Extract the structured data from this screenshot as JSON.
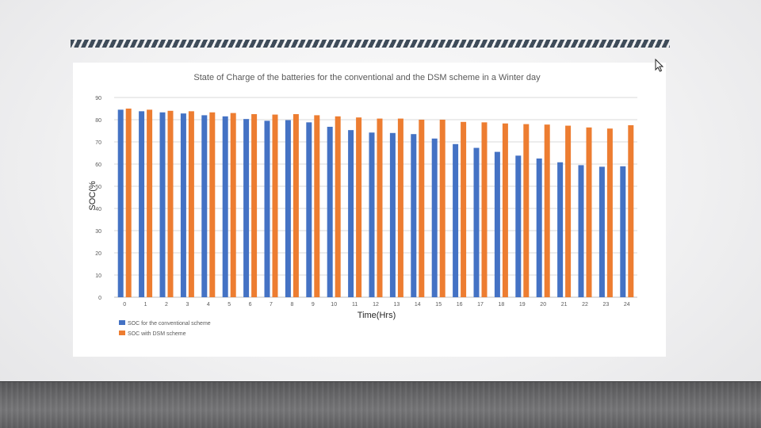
{
  "chart_data": {
    "type": "bar",
    "title": "State of Charge of the batteries for the conventional and the DSM scheme in a Winter day",
    "xlabel": "Time(Hrs)",
    "ylabel": "SOC(%",
    "ylim": [
      0,
      90
    ],
    "yticks": [
      0,
      10,
      20,
      30,
      40,
      50,
      60,
      70,
      80,
      90
    ],
    "grid": true,
    "legend": "bottom-left",
    "categories": [
      "0",
      "1",
      "2",
      "3",
      "4",
      "5",
      "6",
      "7",
      "8",
      "9",
      "10",
      "11",
      "12",
      "13",
      "14",
      "15",
      "16",
      "17",
      "18",
      "19",
      "20",
      "21",
      "22",
      "23",
      "24"
    ],
    "series": [
      {
        "name": "SOC for the conventional scheme",
        "color": "#4472c4",
        "values": [
          84.5,
          83.8,
          83.3,
          82.8,
          82.0,
          81.5,
          80.3,
          79.5,
          79.8,
          78.8,
          76.8,
          75.3,
          74.2,
          74.0,
          73.5,
          71.5,
          69.0,
          67.3,
          65.5,
          63.8,
          62.5,
          60.8,
          59.5,
          58.8,
          59.0
        ]
      },
      {
        "name": "SOC with DSM scheme",
        "color": "#ed7d31",
        "values": [
          85.0,
          84.5,
          84.0,
          83.8,
          83.3,
          83.0,
          82.5,
          82.3,
          82.5,
          82.0,
          81.5,
          81.0,
          80.5,
          80.5,
          80.0,
          80.0,
          79.0,
          78.8,
          78.3,
          78.0,
          77.8,
          77.3,
          76.5,
          76.0,
          77.5
        ]
      }
    ]
  },
  "decor": {
    "hatch_color": "#3f4c5a",
    "floor_color": "#6b6b6d",
    "cursor_icon": "mouse-pointer-icon"
  }
}
